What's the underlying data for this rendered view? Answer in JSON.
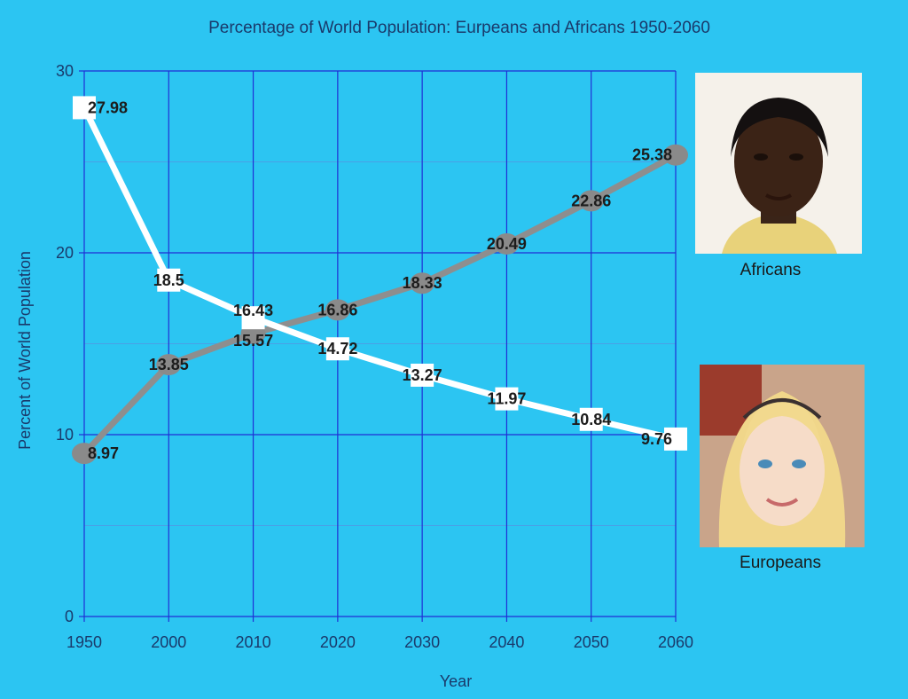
{
  "colors": {
    "background": "#2cc5f2",
    "grid_major": "#1f2fd6",
    "grid_minor": "#4aa0e6",
    "europeans_line": "#ffffff",
    "africans_line": "#8e8e8e",
    "text": "#1a3a6b"
  },
  "chart_data": {
    "type": "line",
    "title": "Percentage of World Population: Eurpeans and Africans 1950-2060",
    "xlabel": "Year",
    "ylabel": "Percent of World Population",
    "categories": [
      "1950",
      "2000",
      "2010",
      "2020",
      "2030",
      "2040",
      "2050",
      "2060"
    ],
    "ylim": [
      0,
      30
    ],
    "yticks": [
      "0",
      "10",
      "20",
      "30"
    ],
    "grid": true,
    "series": [
      {
        "name": "Europeans",
        "marker": "square",
        "values": [
          27.98,
          18.5,
          16.43,
          14.72,
          13.27,
          11.97,
          10.84,
          9.76
        ],
        "labels": [
          "27.98",
          "18.5",
          "16.43",
          "14.72",
          "13.27",
          "11.97",
          "10.84",
          "9.76"
        ]
      },
      {
        "name": "Africans",
        "marker": "circle",
        "values": [
          8.97,
          13.85,
          15.57,
          16.86,
          18.33,
          20.49,
          22.86,
          25.38
        ],
        "labels": [
          "8.97",
          "13.85",
          "15.57",
          "16.86",
          "18.33",
          "20.49",
          "22.86",
          "25.38"
        ]
      }
    ]
  },
  "photos": {
    "africans": {
      "caption": "Africans",
      "icon": "portrait-photo-icon"
    },
    "europeans": {
      "caption": "Europeans",
      "icon": "portrait-photo-icon"
    }
  }
}
